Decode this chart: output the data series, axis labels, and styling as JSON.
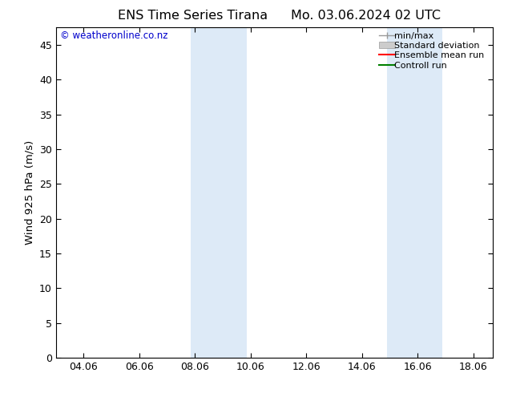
{
  "title_left": "ENS Time Series Tirana",
  "title_right": "Mo. 03.06.2024 02 UTC",
  "ylabel": "Wind 925 hPa (m/s)",
  "watermark": "© weatheronline.co.nz",
  "xlim_left": 3.0,
  "xlim_right": 18.7,
  "ylim_bottom": 0,
  "ylim_top": 47.5,
  "yticks": [
    0,
    5,
    10,
    15,
    20,
    25,
    30,
    35,
    40,
    45
  ],
  "xtick_positions": [
    4.0,
    6.0,
    8.0,
    10.0,
    12.0,
    14.0,
    16.0,
    18.0
  ],
  "xtick_labels": [
    "04.06",
    "06.06",
    "08.06",
    "10.06",
    "12.06",
    "14.06",
    "16.06",
    "18.06"
  ],
  "shaded_bands": [
    {
      "x_start": 7.85,
      "x_end": 9.85
    },
    {
      "x_start": 14.9,
      "x_end": 16.9
    }
  ],
  "shade_color": "#ddeaf7",
  "background_color": "#ffffff",
  "title_fontsize": 11.5,
  "ylabel_fontsize": 9.5,
  "tick_fontsize": 9,
  "watermark_color": "#0000cc",
  "watermark_fontsize": 8.5,
  "legend_fontsize": 8,
  "minmax_color": "#999999",
  "stddev_color": "#cccccc",
  "ensemble_color": "#ff0000",
  "control_color": "#008000"
}
